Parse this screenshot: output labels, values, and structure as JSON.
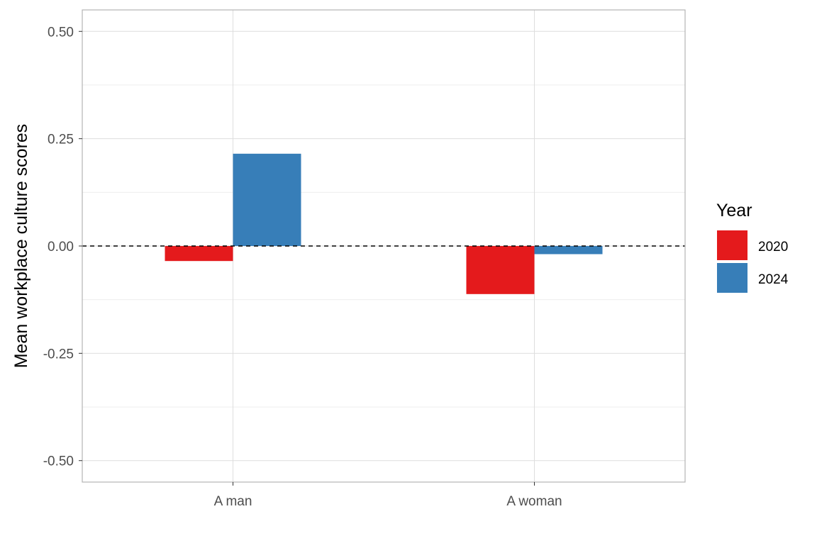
{
  "chart_data": {
    "type": "bar",
    "categories": [
      "A man",
      "A woman"
    ],
    "series": [
      {
        "name": "2020",
        "values": [
          -0.035,
          -0.112
        ]
      },
      {
        "name": "2024",
        "values": [
          0.215,
          -0.019
        ]
      }
    ],
    "ylabel": "Mean workplace culture scores",
    "xlabel": "",
    "ylim": [
      -0.55,
      0.55
    ],
    "yticks": [
      0.5,
      0.25,
      0.0,
      -0.25,
      -0.5
    ],
    "ytick_labels": [
      "0.50",
      "0.25",
      "0.00",
      "-0.25",
      "-0.50"
    ],
    "grid": true,
    "reference_line": {
      "y": 0,
      "style": "dashed"
    },
    "legend": {
      "title": "Year",
      "position": "right"
    },
    "colors": {
      "2020": "#e41a1c",
      "2024": "#377eb8"
    }
  }
}
